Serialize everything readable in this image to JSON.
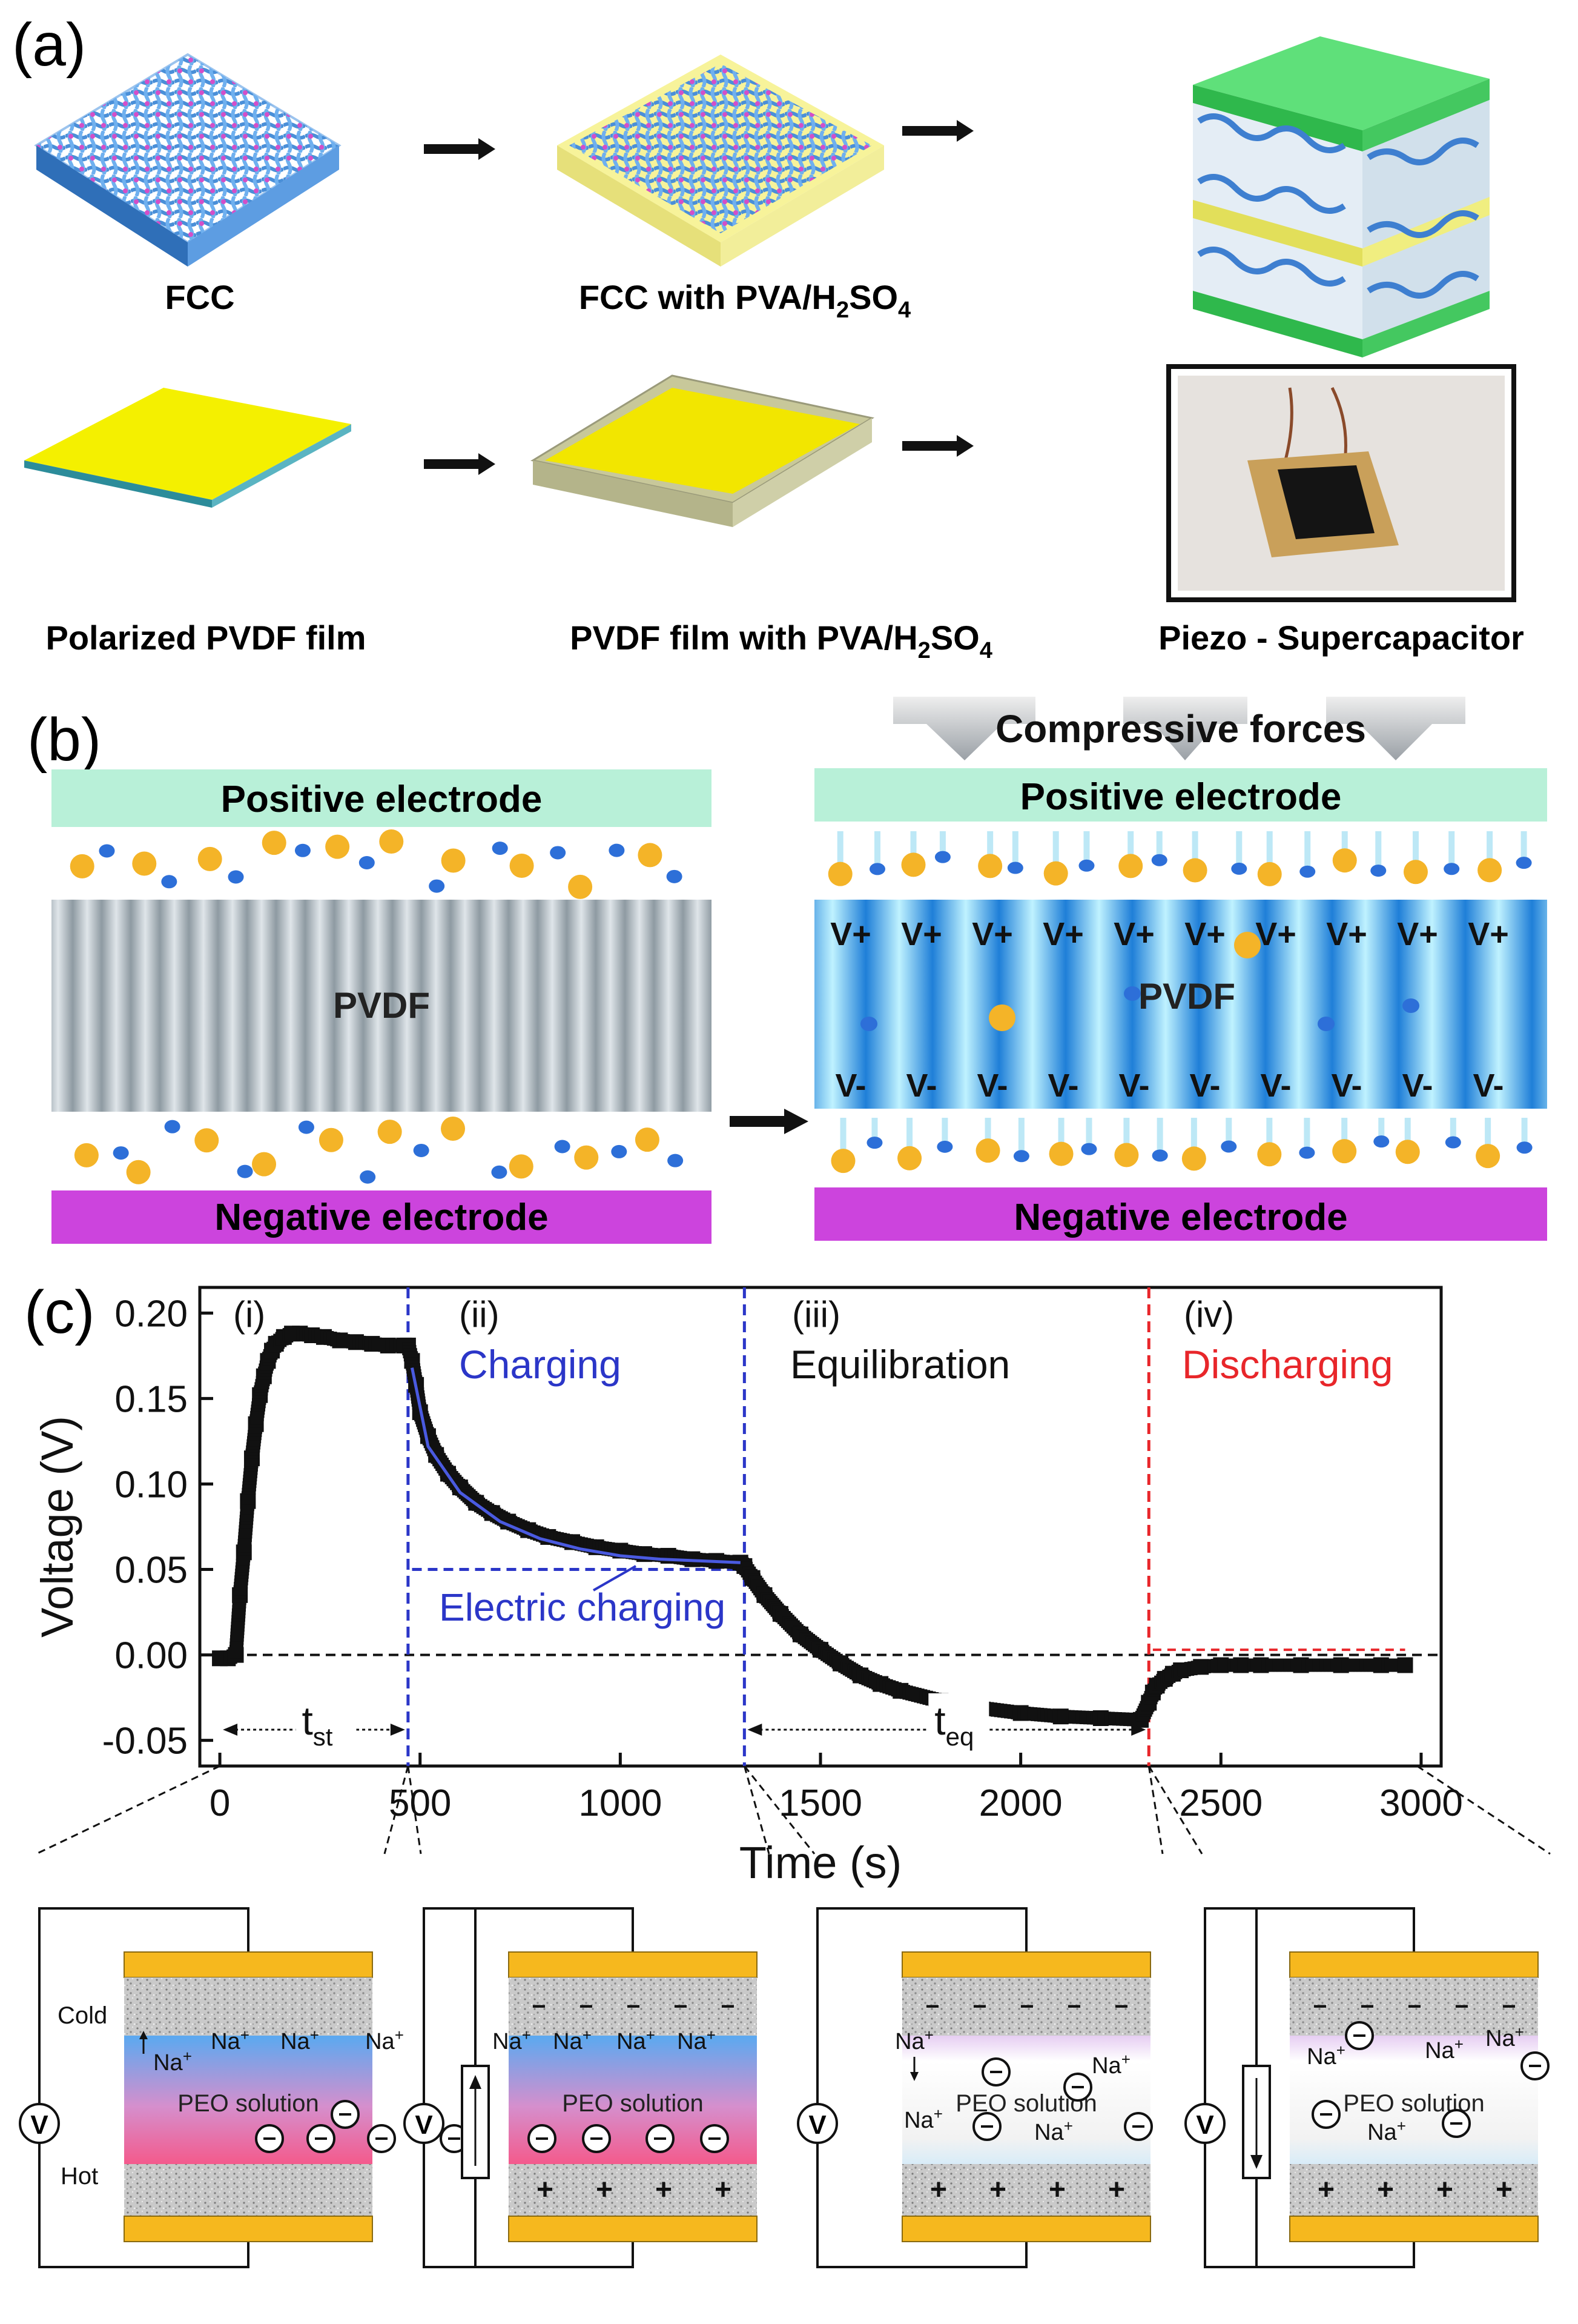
{
  "panel_a": {
    "label": "(a)",
    "fcc": "FCC",
    "fcc_pva": "FCC with PVA/H",
    "fcc_pva_sub2": "2",
    "fcc_pva_so": "SO",
    "fcc_pva_sub4": "4",
    "pvdf_film": "Polarized PVDF film",
    "pvdf_pva": "PVDF film with PVA/H",
    "pvdf_pva_sub2": "2",
    "pvdf_pva_so": "SO",
    "pvdf_pva_sub4": "4",
    "device": "Piezo - Supercapacitor"
  },
  "panel_b": {
    "label": "(b)",
    "positive": "Positive electrode",
    "negative": "Negative electrode",
    "pvdf": "PVDF",
    "compressive": "Compressive forces",
    "vplus": "V+",
    "vminus": "V-"
  },
  "panel_c": {
    "label": "(c)",
    "stage_i": "(i)",
    "stage_ii": "(ii)",
    "stage_iii": "(iii)",
    "stage_iv": "(iv)",
    "charging": "Charging",
    "equilibration": "Equilibration",
    "discharging": "Discharging",
    "electric_charging": "Electric charging",
    "t_st": "t",
    "t_st_sub": "st",
    "t_eq": "t",
    "t_eq_sub": "eq",
    "cold": "Cold",
    "hot": "Hot",
    "peo": "PEO solution",
    "na": "Na",
    "v": "V",
    "minus": "−",
    "plus": "+"
  },
  "colors": {
    "charging_blue": "#2b36c8",
    "discharging_red": "#e8262a",
    "electrode_green": "#b8f0d8",
    "electrode_magenta": "#cc44dd",
    "gold": "#f4b428",
    "cation_blue": "#2d6fd8",
    "pvdf_blue": "#3b98e6"
  },
  "chart_data": {
    "type": "scatter",
    "title": "",
    "xlabel": "Time (s)",
    "ylabel": "Voltage (V)",
    "xlim": [
      -50,
      3050
    ],
    "ylim": [
      -0.065,
      0.215
    ],
    "xticks": [
      0,
      500,
      1000,
      1500,
      2000,
      2500,
      3000
    ],
    "xtick_labels": [
      "0",
      "500",
      "1000",
      "1500",
      "2000",
      "2500",
      "3000"
    ],
    "yticks": [
      -0.05,
      0.0,
      0.05,
      0.1,
      0.15,
      0.2
    ],
    "ytick_labels": [
      "-0.05",
      "0.00",
      "0.05",
      "0.10",
      "0.15",
      "0.20"
    ],
    "dividers": [
      {
        "x": 470,
        "color": "blue"
      },
      {
        "x": 1310,
        "color": "blue"
      },
      {
        "x": 2320,
        "color": "red"
      }
    ],
    "zero_line": 0,
    "series": [
      {
        "name": "Voltage",
        "marker": "square",
        "x": [
          0,
          20,
          40,
          50,
          60,
          70,
          80,
          90,
          100,
          110,
          120,
          130,
          140,
          160,
          180,
          200,
          230,
          260,
          300,
          340,
          380,
          420,
          460,
          470,
          480,
          490,
          500,
          520,
          540,
          570,
          600,
          640,
          680,
          720,
          770,
          820,
          880,
          940,
          1000,
          1060,
          1120,
          1180,
          1240,
          1300,
          1310,
          1330,
          1360,
          1400,
          1450,
          1500,
          1550,
          1600,
          1650,
          1700,
          1800,
          1900,
          2000,
          2100,
          2200,
          2300,
          2320,
          2330,
          2340,
          2360,
          2380,
          2400,
          2450,
          2500,
          2550,
          2600,
          2700,
          2800,
          2900,
          2960
        ],
        "y": [
          -0.002,
          -0.002,
          0.0,
          0.035,
          0.06,
          0.09,
          0.115,
          0.135,
          0.152,
          0.163,
          0.172,
          0.178,
          0.182,
          0.186,
          0.188,
          0.188,
          0.187,
          0.186,
          0.184,
          0.183,
          0.182,
          0.181,
          0.181,
          0.181,
          0.172,
          0.158,
          0.142,
          0.128,
          0.117,
          0.106,
          0.098,
          0.089,
          0.083,
          0.078,
          0.073,
          0.069,
          0.066,
          0.063,
          0.061,
          0.059,
          0.058,
          0.056,
          0.055,
          0.054,
          0.052,
          0.045,
          0.035,
          0.024,
          0.012,
          0.003,
          -0.005,
          -0.012,
          -0.017,
          -0.021,
          -0.027,
          -0.031,
          -0.034,
          -0.036,
          -0.037,
          -0.038,
          -0.028,
          -0.022,
          -0.018,
          -0.014,
          -0.011,
          -0.009,
          -0.007,
          -0.006,
          -0.006,
          -0.006,
          -0.006,
          -0.006,
          -0.006,
          -0.006
        ]
      },
      {
        "name": "Electric charging fit",
        "marker": "line",
        "x": [
          480,
          520,
          600,
          700,
          800,
          900,
          1000,
          1100,
          1200,
          1300
        ],
        "y": [
          0.168,
          0.122,
          0.095,
          0.078,
          0.068,
          0.062,
          0.058,
          0.056,
          0.055,
          0.054
        ]
      }
    ],
    "electric_charging_baseline": 0.05
  }
}
